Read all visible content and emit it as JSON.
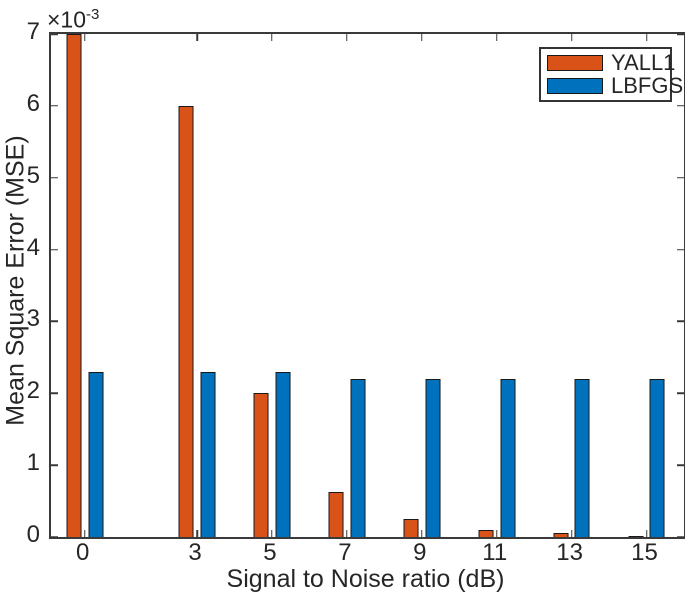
{
  "chart_data": {
    "type": "bar",
    "title": "",
    "xlabel": "Signal to Noise ratio (dB)",
    "ylabel": "Mean Square Error (MSE)",
    "y_exponent": {
      "base": "×10",
      "exp": "-3"
    },
    "y_scale_factor": 0.001,
    "categories": [
      0,
      3,
      5,
      7,
      9,
      11,
      13,
      15
    ],
    "x_axis_numeric": true,
    "xlim": [
      -0.9,
      16.0
    ],
    "ylim": [
      0,
      7
    ],
    "yticks": [
      0,
      1,
      2,
      3,
      4,
      5,
      6,
      7
    ],
    "series": [
      {
        "name": "YALL1",
        "color": "#D95319",
        "values": [
          7.0,
          6.0,
          2.0,
          0.62,
          0.25,
          0.1,
          0.05,
          0.02
        ]
      },
      {
        "name": "LBFGS",
        "color": "#0072BD",
        "values": [
          2.3,
          2.3,
          2.3,
          2.2,
          2.2,
          2.2,
          2.2,
          2.2
        ]
      }
    ],
    "annotations": [
      "YALL1 bar at 0 dB is clipped at the top of the axis (value >= 7e-3)"
    ],
    "legend": {
      "position": "top-right",
      "entries": [
        "YALL1",
        "LBFGS"
      ]
    },
    "grid": false,
    "bar_width_units": 0.4,
    "bar_offset_units": 0.29,
    "bar_edge_color": "#1a1a1a",
    "axis_color": "#3a3a3a",
    "text_color": "#262626",
    "background_color": "#ffffff"
  }
}
